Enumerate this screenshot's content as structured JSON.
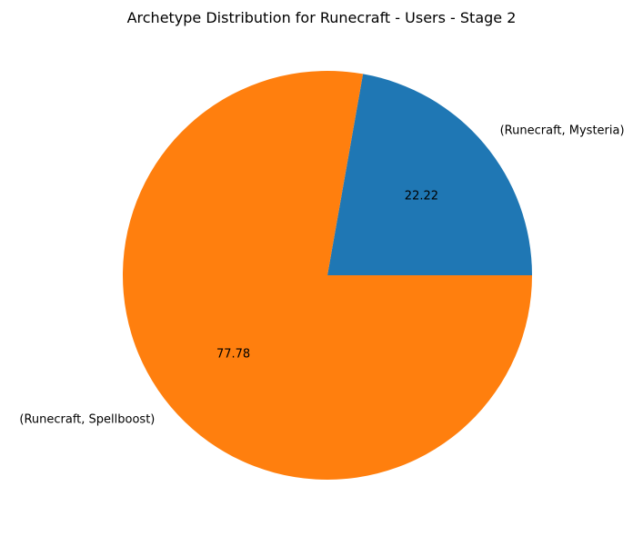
{
  "chart_data": {
    "type": "pie",
    "title": "Archetype Distribution for Runecraft - Users - Stage 2",
    "start_angle_deg": 0,
    "direction": "counterclockwise",
    "slices": [
      {
        "label": "(Runecraft, Mysteria)",
        "value": 22.22,
        "pct_label": "22.22",
        "color": "#1f77b4"
      },
      {
        "label": "(Runecraft, Spellboost)",
        "value": 77.78,
        "pct_label": "77.78",
        "color": "#ff7f0e"
      }
    ]
  }
}
